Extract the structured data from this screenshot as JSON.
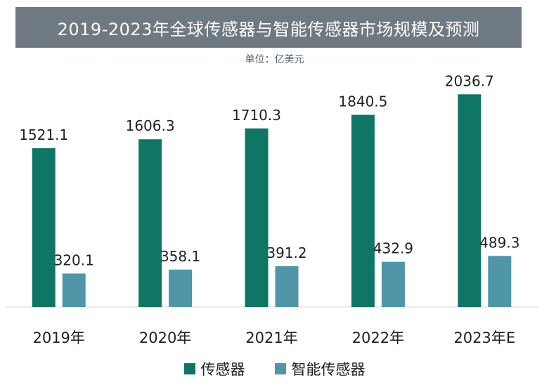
{
  "chart_data": {
    "type": "bar",
    "title": "2019-2023年全球传感器与智能传感器市场规模及预测",
    "subtitle": "单位：亿美元",
    "categories": [
      "2019年",
      "2020年",
      "2021年",
      "2022年",
      "2023年E"
    ],
    "series": [
      {
        "name": "传感器",
        "color": "#0f7564",
        "values": [
          1521.1,
          1606.3,
          1710.3,
          1840.5,
          2036.7
        ],
        "labels": [
          "1521.1",
          "1606.3",
          "1710.3",
          "1840.5",
          "2036.7"
        ]
      },
      {
        "name": "智能传感器",
        "color": "#4f96a9",
        "values": [
          320.1,
          358.1,
          391.2,
          432.9,
          489.3
        ],
        "labels": [
          "320.1",
          "358.1",
          "391.2",
          "432.9",
          "489.3"
        ]
      }
    ],
    "ylim": [
      0,
      2200
    ],
    "grid": false,
    "legend_position": "bottom"
  }
}
